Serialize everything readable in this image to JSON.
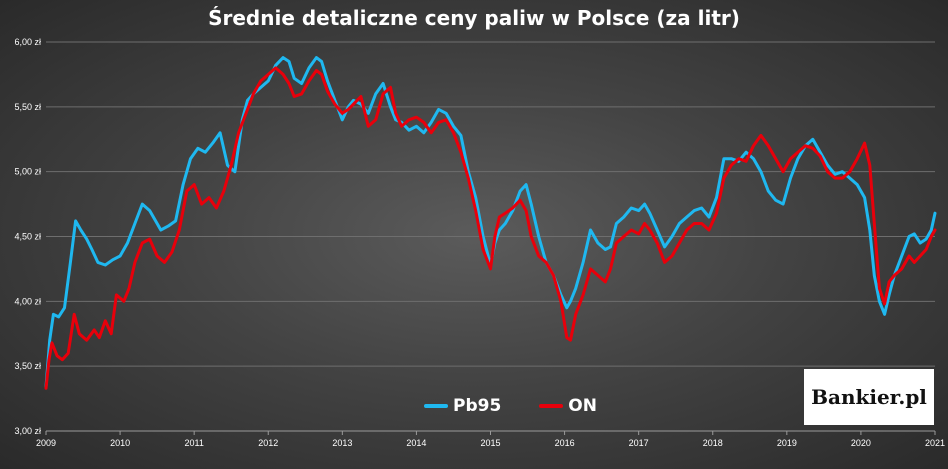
{
  "colors": {
    "pb95": "#1fb8f0",
    "on": "#e8000b",
    "grid": "#6e6e6e",
    "axis": "#9a9a9a",
    "text": "#ffffff"
  },
  "logo": {
    "text": "Bankier.pl"
  },
  "chart_data": {
    "type": "line",
    "title": "Średnie detaliczne ceny paliw w Polsce (za litr)",
    "xlabel": "",
    "ylabel": "",
    "xlim": [
      2009,
      2021
    ],
    "ylim": [
      3.0,
      6.0
    ],
    "x_ticks": [
      "2009",
      "2010",
      "2011",
      "2012",
      "2013",
      "2014",
      "2015",
      "2016",
      "2017",
      "2018",
      "2019",
      "2020",
      "2021"
    ],
    "y_ticks": [
      {
        "value": 3.0,
        "label": "3,00 zł"
      },
      {
        "value": 3.5,
        "label": "3,50 zł"
      },
      {
        "value": 4.0,
        "label": "4,00 zł"
      },
      {
        "value": 4.5,
        "label": "4,50 zł"
      },
      {
        "value": 5.0,
        "label": "5,00 zł"
      },
      {
        "value": 5.5,
        "label": "5,50 zł"
      },
      {
        "value": 6.0,
        "label": "6,00 zł"
      }
    ],
    "grid": true,
    "legend_position": "bottom-center",
    "series": [
      {
        "name": "Pb95",
        "color": "#1fb8f0",
        "x": [
          2009.0,
          2009.05,
          2009.1,
          2009.17,
          2009.25,
          2009.33,
          2009.4,
          2009.47,
          2009.55,
          2009.62,
          2009.7,
          2009.8,
          2009.9,
          2010.0,
          2010.1,
          2010.2,
          2010.3,
          2010.4,
          2010.5,
          2010.55,
          2010.65,
          2010.75,
          2010.85,
          2010.95,
          2011.05,
          2011.15,
          2011.25,
          2011.35,
          2011.45,
          2011.55,
          2011.65,
          2011.72,
          2011.8,
          2011.9,
          2012.0,
          2012.1,
          2012.2,
          2012.28,
          2012.35,
          2012.45,
          2012.55,
          2012.65,
          2012.72,
          2012.8,
          2012.9,
          2013.0,
          2013.08,
          2013.15,
          2013.25,
          2013.35,
          2013.45,
          2013.55,
          2013.65,
          2013.72,
          2013.8,
          2013.9,
          2014.0,
          2014.1,
          2014.2,
          2014.3,
          2014.4,
          2014.5,
          2014.6,
          2014.7,
          2014.8,
          2014.9,
          2015.0,
          2015.06,
          2015.12,
          2015.2,
          2015.3,
          2015.4,
          2015.48,
          2015.55,
          2015.65,
          2015.75,
          2015.85,
          2015.95,
          2016.03,
          2016.08,
          2016.15,
          2016.25,
          2016.35,
          2016.45,
          2016.55,
          2016.62,
          2016.7,
          2016.8,
          2016.9,
          2017.0,
          2017.08,
          2017.15,
          2017.25,
          2017.35,
          2017.45,
          2017.55,
          2017.65,
          2017.75,
          2017.85,
          2017.95,
          2018.05,
          2018.15,
          2018.25,
          2018.35,
          2018.45,
          2018.55,
          2018.65,
          2018.75,
          2018.85,
          2018.95,
          2019.05,
          2019.15,
          2019.25,
          2019.35,
          2019.45,
          2019.55,
          2019.65,
          2019.75,
          2019.85,
          2019.95,
          2020.05,
          2020.12,
          2020.18,
          2020.25,
          2020.32,
          2020.38,
          2020.45,
          2020.55,
          2020.65,
          2020.72,
          2020.8,
          2020.88,
          2020.95,
          2021.0
        ],
        "values": [
          3.34,
          3.7,
          3.9,
          3.88,
          3.95,
          4.3,
          4.62,
          4.55,
          4.48,
          4.4,
          4.3,
          4.28,
          4.32,
          4.35,
          4.45,
          4.6,
          4.75,
          4.7,
          4.6,
          4.55,
          4.58,
          4.62,
          4.9,
          5.1,
          5.18,
          5.15,
          5.22,
          5.3,
          5.05,
          5.0,
          5.4,
          5.55,
          5.6,
          5.65,
          5.7,
          5.82,
          5.88,
          5.85,
          5.72,
          5.68,
          5.8,
          5.88,
          5.85,
          5.7,
          5.55,
          5.4,
          5.5,
          5.55,
          5.52,
          5.45,
          5.6,
          5.68,
          5.5,
          5.4,
          5.38,
          5.32,
          5.35,
          5.3,
          5.38,
          5.48,
          5.45,
          5.35,
          5.28,
          5.0,
          4.8,
          4.5,
          4.28,
          4.45,
          4.55,
          4.6,
          4.7,
          4.85,
          4.9,
          4.75,
          4.5,
          4.3,
          4.2,
          4.05,
          3.95,
          4.0,
          4.1,
          4.3,
          4.55,
          4.45,
          4.4,
          4.42,
          4.6,
          4.65,
          4.72,
          4.7,
          4.75,
          4.68,
          4.55,
          4.42,
          4.5,
          4.6,
          4.65,
          4.7,
          4.72,
          4.65,
          4.8,
          5.1,
          5.1,
          5.08,
          5.15,
          5.1,
          5.0,
          4.85,
          4.78,
          4.75,
          4.95,
          5.1,
          5.2,
          5.25,
          5.15,
          5.05,
          4.98,
          5.0,
          4.95,
          4.9,
          4.8,
          4.55,
          4.2,
          4.0,
          3.9,
          4.05,
          4.2,
          4.35,
          4.5,
          4.52,
          4.45,
          4.48,
          4.55,
          4.68
        ]
      },
      {
        "name": "ON",
        "color": "#e8000b",
        "x": [
          2009.0,
          2009.04,
          2009.08,
          2009.15,
          2009.22,
          2009.3,
          2009.38,
          2009.45,
          2009.55,
          2009.65,
          2009.72,
          2009.8,
          2009.88,
          2009.95,
          2010.05,
          2010.12,
          2010.2,
          2010.3,
          2010.4,
          2010.5,
          2010.6,
          2010.7,
          2010.8,
          2010.9,
          2011.0,
          2011.1,
          2011.2,
          2011.3,
          2011.4,
          2011.5,
          2011.6,
          2011.7,
          2011.8,
          2011.9,
          2012.0,
          2012.1,
          2012.2,
          2012.28,
          2012.35,
          2012.45,
          2012.55,
          2012.65,
          2012.72,
          2012.8,
          2012.9,
          2013.0,
          2013.08,
          2013.15,
          2013.25,
          2013.35,
          2013.45,
          2013.55,
          2013.65,
          2013.72,
          2013.8,
          2013.9,
          2014.0,
          2014.1,
          2014.2,
          2014.3,
          2014.4,
          2014.5,
          2014.6,
          2014.7,
          2014.8,
          2014.9,
          2015.0,
          2015.06,
          2015.12,
          2015.2,
          2015.3,
          2015.4,
          2015.48,
          2015.55,
          2015.65,
          2015.75,
          2015.85,
          2015.95,
          2016.03,
          2016.08,
          2016.15,
          2016.25,
          2016.35,
          2016.45,
          2016.55,
          2016.62,
          2016.7,
          2016.8,
          2016.9,
          2017.0,
          2017.08,
          2017.15,
          2017.25,
          2017.35,
          2017.45,
          2017.55,
          2017.65,
          2017.75,
          2017.85,
          2017.95,
          2018.05,
          2018.15,
          2018.25,
          2018.35,
          2018.45,
          2018.55,
          2018.65,
          2018.75,
          2018.85,
          2018.95,
          2019.05,
          2019.15,
          2019.25,
          2019.35,
          2019.45,
          2019.55,
          2019.65,
          2019.75,
          2019.85,
          2019.95,
          2020.05,
          2020.12,
          2020.18,
          2020.25,
          2020.32,
          2020.38,
          2020.45,
          2020.55,
          2020.65,
          2020.72,
          2020.8,
          2020.88,
          2020.95,
          2021.0
        ],
        "values": [
          3.33,
          3.55,
          3.68,
          3.58,
          3.55,
          3.6,
          3.9,
          3.75,
          3.7,
          3.78,
          3.72,
          3.85,
          3.75,
          4.05,
          4.0,
          4.1,
          4.3,
          4.45,
          4.48,
          4.35,
          4.3,
          4.38,
          4.55,
          4.85,
          4.9,
          4.75,
          4.8,
          4.72,
          4.85,
          5.05,
          5.3,
          5.45,
          5.6,
          5.7,
          5.75,
          5.8,
          5.75,
          5.68,
          5.58,
          5.6,
          5.7,
          5.78,
          5.75,
          5.62,
          5.52,
          5.45,
          5.48,
          5.52,
          5.58,
          5.35,
          5.4,
          5.6,
          5.65,
          5.45,
          5.35,
          5.4,
          5.42,
          5.38,
          5.3,
          5.38,
          5.4,
          5.3,
          5.15,
          4.95,
          4.7,
          4.4,
          4.25,
          4.5,
          4.65,
          4.68,
          4.72,
          4.78,
          4.7,
          4.5,
          4.35,
          4.3,
          4.2,
          4.0,
          3.72,
          3.7,
          3.9,
          4.05,
          4.25,
          4.2,
          4.15,
          4.25,
          4.45,
          4.5,
          4.55,
          4.52,
          4.6,
          4.55,
          4.45,
          4.3,
          4.35,
          4.45,
          4.55,
          4.6,
          4.6,
          4.55,
          4.68,
          4.95,
          5.05,
          5.1,
          5.08,
          5.2,
          5.28,
          5.2,
          5.1,
          5.0,
          5.1,
          5.15,
          5.2,
          5.18,
          5.12,
          5.0,
          4.95,
          4.95,
          5.0,
          5.1,
          5.22,
          5.05,
          4.6,
          4.1,
          3.98,
          4.15,
          4.2,
          4.25,
          4.35,
          4.3,
          4.35,
          4.4,
          4.5,
          4.55
        ]
      }
    ]
  }
}
